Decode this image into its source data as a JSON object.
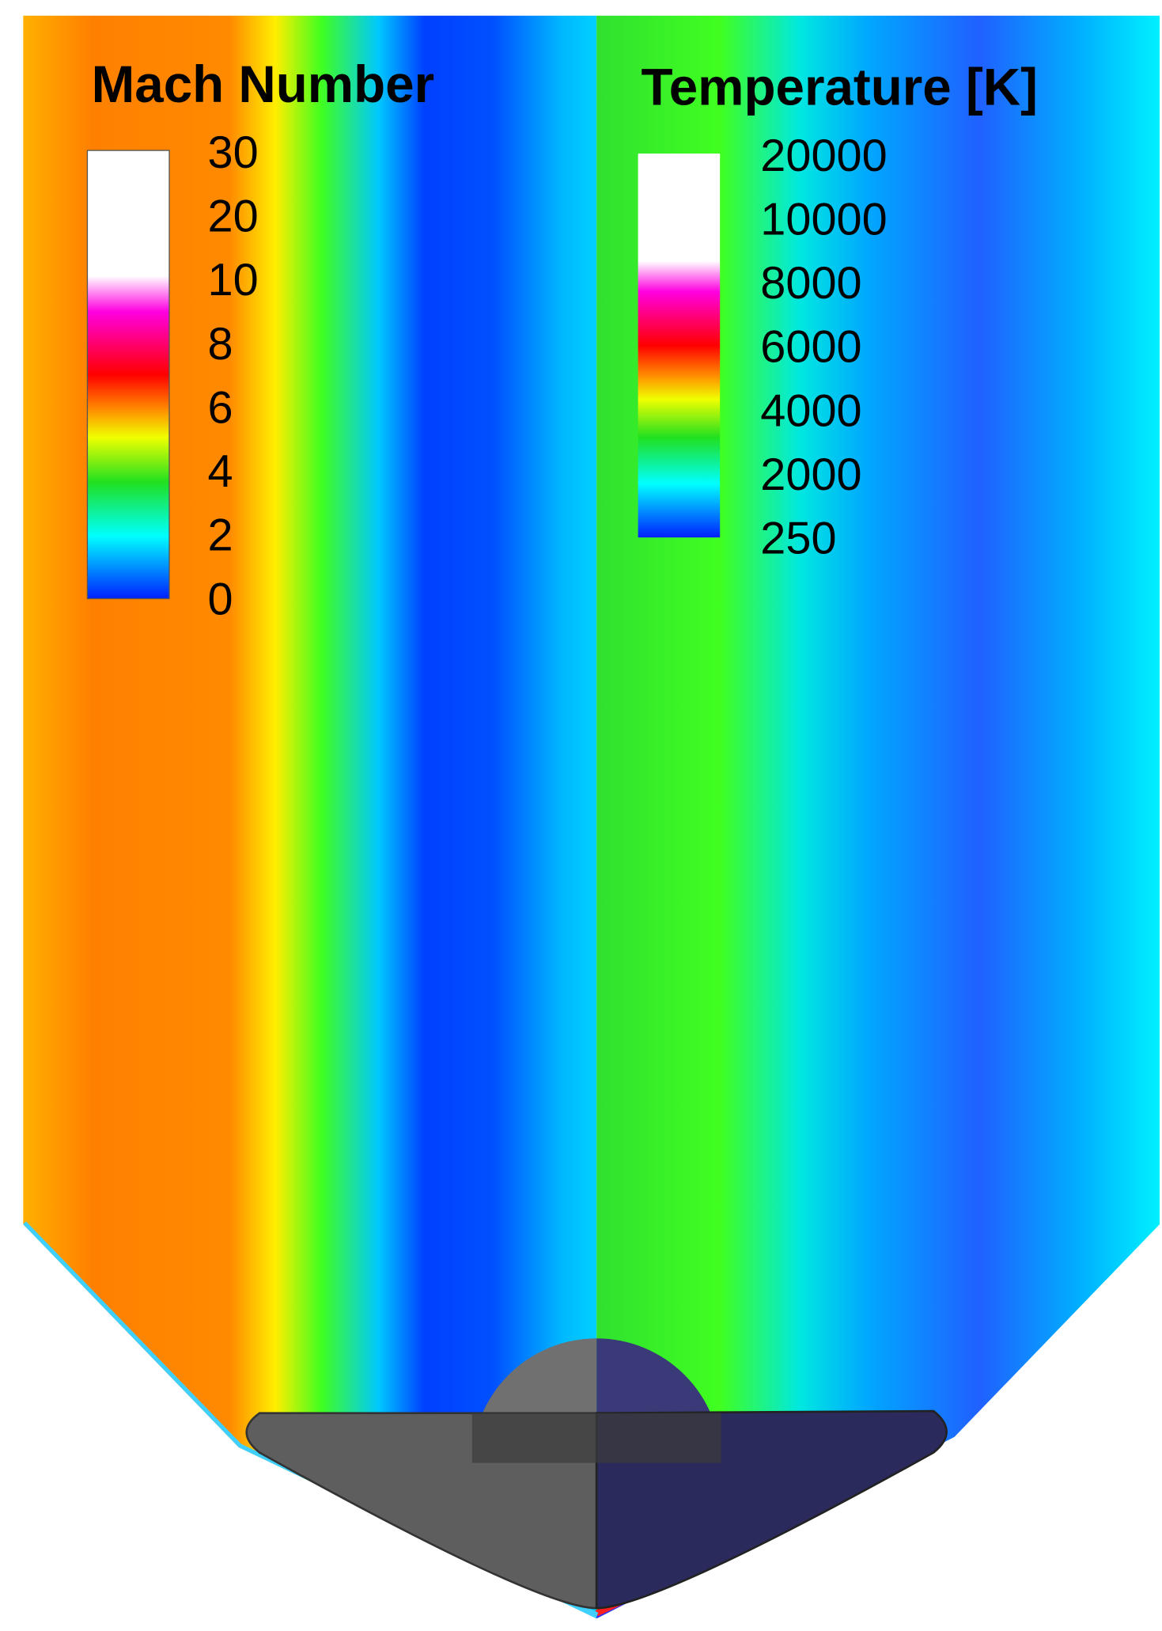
{
  "panels": [
    {
      "title": "Mach Number",
      "legend_labels": [
        "30",
        "20",
        "10",
        "8",
        "6",
        "4",
        "2",
        "0"
      ]
    },
    {
      "title": "Temperature [K]",
      "legend_labels": [
        "20000",
        "10000",
        "8000",
        "6000",
        "4000",
        "2000",
        "250"
      ]
    }
  ]
}
